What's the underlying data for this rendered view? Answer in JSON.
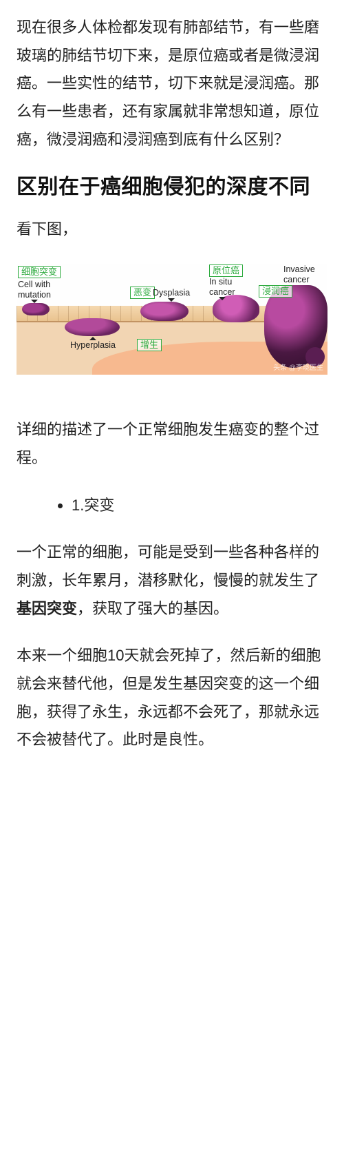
{
  "intro": "现在很多人体检都发现有肺部结节，有一些磨玻璃的肺结节切下来，是原位癌或者是微浸润癌。一些实性的结节，切下来就是浸润癌。那么有一些患者，还有家属就非常想知道，原位癌，微浸润癌和浸润癌到底有什么区别？",
  "heading": "区别在于癌细胞侵犯的深度不同",
  "see_fig": "看下图，",
  "diagram": {
    "green_labels": {
      "mutation": "细胞突变",
      "dysplasia": "恶变",
      "insitu": "原位癌",
      "invasive": "浸润癌",
      "hyperplasia": "增生"
    },
    "en_labels": {
      "mutation": "Cell with\nmutation",
      "hyperplasia": "Hyperplasia",
      "dysplasia": "Dysplasia",
      "insitu": "In situ\ncancer",
      "invasive": "Invasive\ncancer"
    },
    "watermark": "头条 @李晓医生",
    "colors": {
      "green": "#2eab3f",
      "tissue": "#f2d5b3",
      "inner": "#f7b98f",
      "lesion_dark": "#4a1842",
      "lesion_mid": "#a03a8c"
    }
  },
  "caption": "详细的描述了一个正常细胞发生癌变的整个过程。",
  "bullet1": "1.突变",
  "para_mut_a_pre": "一个正常的细胞，可能是受到一些各种各样的刺激，长年累月，潜移默化，慢慢的就发生了",
  "para_mut_a_bold": "基因突变",
  "para_mut_a_post": "，获取了强大的基因。",
  "para_mut_b": "本来一个细胞10天就会死掉了，然后新的细胞就会来替代他，但是发生基因突变的这一个细胞，获得了永生，永远都不会死了，那就永远不会被替代了。此时是良性。"
}
